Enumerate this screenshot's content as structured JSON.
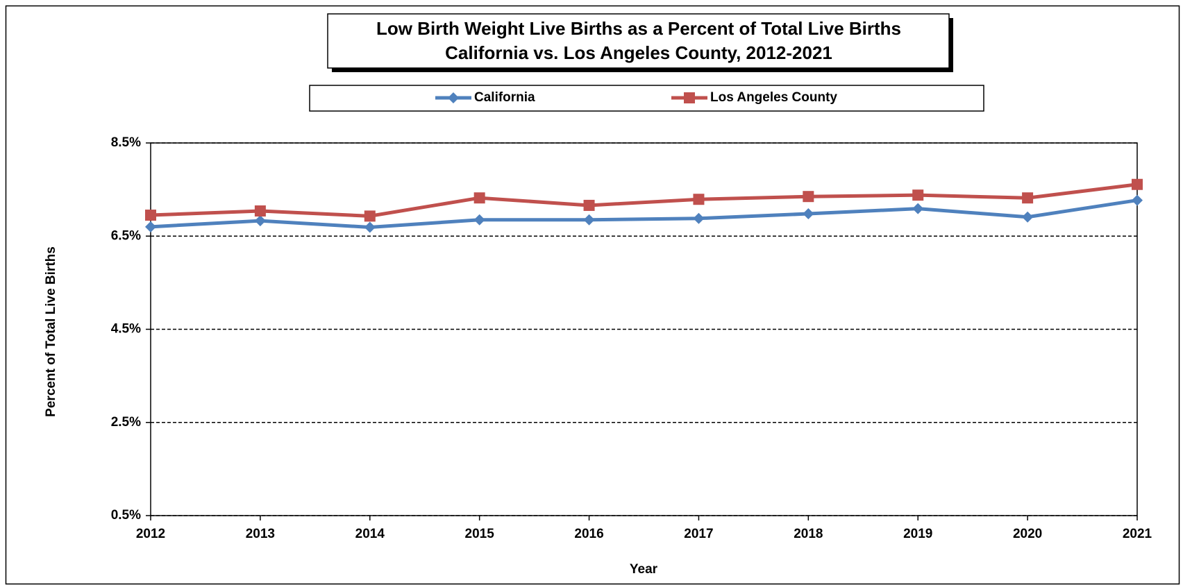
{
  "chart_data": {
    "type": "line",
    "title": "Low Birth Weight Live Births as a Percent of Total Live Births",
    "subtitle": "California vs. Los Angeles County, 2012-2021",
    "x_label": "Year",
    "y_label": "Percent of Total Live Births",
    "categories": [
      "2012",
      "2013",
      "2014",
      "2015",
      "2016",
      "2017",
      "2018",
      "2019",
      "2020",
      "2021"
    ],
    "series": [
      {
        "name": "California",
        "color": "#4f81bd",
        "marker": "diamond",
        "values": [
          6.7,
          6.83,
          6.69,
          6.85,
          6.85,
          6.88,
          6.98,
          7.09,
          6.91,
          7.27
        ]
      },
      {
        "name": "Los Angeles County",
        "color": "#c0504d",
        "marker": "square",
        "values": [
          6.95,
          7.04,
          6.93,
          7.32,
          7.16,
          7.29,
          7.35,
          7.38,
          7.32,
          7.61
        ]
      }
    ],
    "ylim": [
      0.5,
      8.5
    ],
    "yticks": [
      {
        "value": 0.5,
        "label": "0.5%"
      },
      {
        "value": 2.5,
        "label": "2.5%"
      },
      {
        "value": 4.5,
        "label": "4.5%"
      },
      {
        "value": 6.5,
        "label": "6.5%"
      },
      {
        "value": 8.5,
        "label": "8.5%"
      }
    ],
    "grid": true,
    "legend": "top"
  }
}
